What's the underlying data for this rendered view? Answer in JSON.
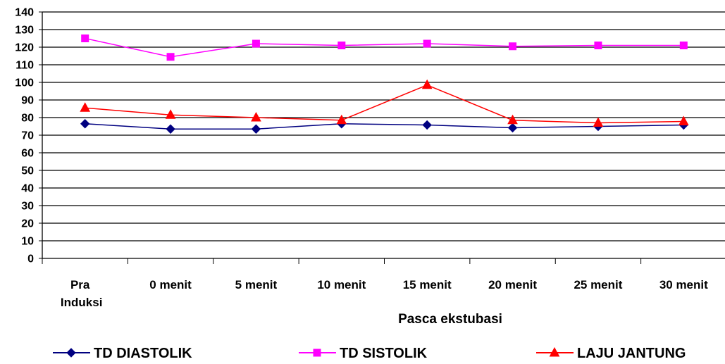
{
  "chart_data": {
    "type": "line",
    "categories": [
      [
        "Pra",
        "Induksi"
      ],
      [
        "0 menit"
      ],
      [
        "5 menit"
      ],
      [
        "10 menit"
      ],
      [
        "15 menit"
      ],
      [
        "20 menit"
      ],
      [
        "25 menit"
      ],
      [
        "30 menit"
      ]
    ],
    "group_label": "Pasca ekstubasi",
    "ylim": [
      0,
      140
    ],
    "yticks": [
      0,
      10,
      20,
      30,
      40,
      50,
      60,
      70,
      80,
      90,
      100,
      110,
      120,
      130,
      140
    ],
    "grid": true,
    "legend_position": "bottom",
    "series": [
      {
        "name": "TD DIASTOLIK",
        "values": [
          76.5,
          73.5,
          73.5,
          76.5,
          75.8,
          74.2,
          75,
          75.8
        ],
        "color": "#000080",
        "marker": "diamond"
      },
      {
        "name": "TD SISTOLIK",
        "values": [
          125,
          114.5,
          122,
          121,
          122,
          120.5,
          121,
          121
        ],
        "color": "#ff00ff",
        "marker": "square"
      },
      {
        "name": "LAJU JANTUNG",
        "values": [
          85.5,
          81.5,
          80,
          78.5,
          98.5,
          78.5,
          77,
          77.8
        ],
        "color": "#ff0000",
        "marker": "triangle"
      }
    ]
  }
}
